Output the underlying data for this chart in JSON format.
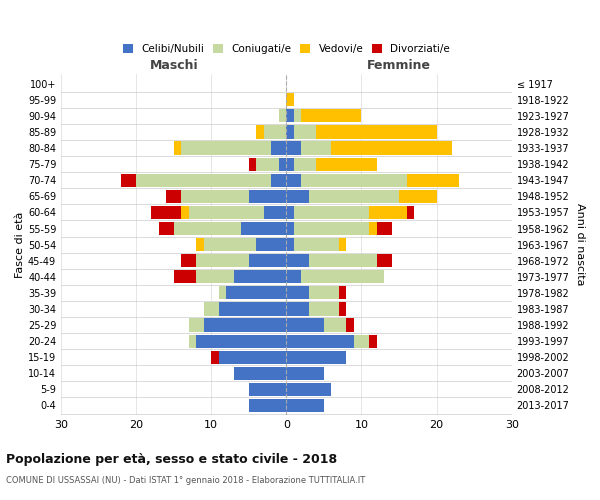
{
  "age_groups": [
    "0-4",
    "5-9",
    "10-14",
    "15-19",
    "20-24",
    "25-29",
    "30-34",
    "35-39",
    "40-44",
    "45-49",
    "50-54",
    "55-59",
    "60-64",
    "65-69",
    "70-74",
    "75-79",
    "80-84",
    "85-89",
    "90-94",
    "95-99",
    "100+"
  ],
  "birth_years": [
    "2013-2017",
    "2008-2012",
    "2003-2007",
    "1998-2002",
    "1993-1997",
    "1988-1992",
    "1983-1987",
    "1978-1982",
    "1973-1977",
    "1968-1972",
    "1963-1967",
    "1958-1962",
    "1953-1957",
    "1948-1952",
    "1943-1947",
    "1938-1942",
    "1933-1937",
    "1928-1932",
    "1923-1927",
    "1918-1922",
    "≤ 1917"
  ],
  "male": {
    "celibi": [
      5,
      5,
      7,
      9,
      12,
      11,
      9,
      8,
      7,
      5,
      4,
      6,
      3,
      5,
      2,
      1,
      2,
      0,
      0,
      0,
      0
    ],
    "coniugati": [
      0,
      0,
      0,
      0,
      1,
      2,
      2,
      1,
      5,
      7,
      7,
      9,
      10,
      9,
      18,
      3,
      12,
      3,
      1,
      0,
      0
    ],
    "vedovi": [
      0,
      0,
      0,
      0,
      0,
      0,
      0,
      0,
      0,
      0,
      1,
      0,
      1,
      0,
      0,
      0,
      1,
      1,
      0,
      0,
      0
    ],
    "divorziati": [
      0,
      0,
      0,
      1,
      0,
      0,
      0,
      0,
      3,
      2,
      0,
      2,
      4,
      2,
      2,
      1,
      0,
      0,
      0,
      0,
      0
    ]
  },
  "female": {
    "nubili": [
      5,
      6,
      5,
      8,
      9,
      5,
      3,
      3,
      2,
      3,
      1,
      1,
      1,
      3,
      2,
      1,
      2,
      1,
      1,
      0,
      0
    ],
    "coniugate": [
      0,
      0,
      0,
      0,
      2,
      3,
      4,
      4,
      11,
      9,
      6,
      10,
      10,
      12,
      14,
      3,
      4,
      3,
      1,
      0,
      0
    ],
    "vedove": [
      0,
      0,
      0,
      0,
      0,
      0,
      0,
      0,
      0,
      0,
      1,
      1,
      5,
      5,
      7,
      8,
      16,
      16,
      8,
      1,
      0
    ],
    "divorziate": [
      0,
      0,
      0,
      0,
      1,
      1,
      1,
      1,
      0,
      2,
      0,
      2,
      1,
      0,
      0,
      0,
      0,
      0,
      0,
      0,
      0
    ]
  },
  "colors": {
    "celibi": "#4472c4",
    "coniugati": "#c5d9a0",
    "vedovi": "#ffc000",
    "divorziati": "#cc0000"
  },
  "xlim": 30,
  "title": "Popolazione per età, sesso e stato civile - 2018",
  "subtitle": "COMUNE DI USSASSAI (NU) - Dati ISTAT 1° gennaio 2018 - Elaborazione TUTTITALIA.IT",
  "ylabel_left": "Fasce di età",
  "ylabel_right": "Anni di nascita",
  "xlabel_left": "Maschi",
  "xlabel_right": "Femmine",
  "legend_labels": [
    "Celibi/Nubili",
    "Coniugati/e",
    "Vedovi/e",
    "Divorziati/e"
  ],
  "bg_color": "#ffffff",
  "grid_color": "#cccccc"
}
